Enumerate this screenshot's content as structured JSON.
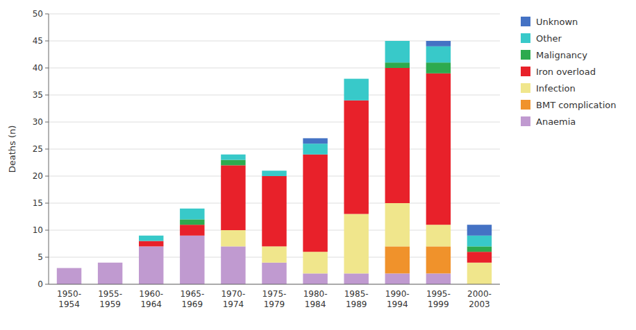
{
  "chart_data": {
    "type": "bar",
    "stacked": true,
    "ylabel": "Deaths (n)",
    "categories": [
      "1950-\n1954",
      "1955-\n1959",
      "1960-\n1964",
      "1965-\n1969",
      "1970-\n1974",
      "1975-\n1979",
      "1980-\n1984",
      "1985-\n1989",
      "1990-\n1994",
      "1995-\n1999",
      "2000-\n2003"
    ],
    "series": [
      {
        "name": "Anaemia",
        "color": "#c09ad0",
        "values": [
          3,
          4,
          7,
          9,
          7,
          4,
          2,
          2,
          2,
          2,
          0
        ]
      },
      {
        "name": "BMT complication",
        "color": "#f0922b",
        "values": [
          0,
          0,
          0,
          0,
          0,
          0,
          0,
          0,
          5,
          5,
          0
        ]
      },
      {
        "name": "Infection",
        "color": "#f0e68c",
        "values": [
          0,
          0,
          0,
          0,
          3,
          3,
          4,
          11,
          8,
          4,
          4
        ]
      },
      {
        "name": "Iron overload",
        "color": "#e8212a",
        "values": [
          0,
          0,
          1,
          2,
          12,
          13,
          18,
          21,
          25,
          28,
          2
        ]
      },
      {
        "name": "Malignancy",
        "color": "#2daa4e",
        "values": [
          0,
          0,
          0,
          1,
          1,
          0,
          0,
          0,
          1,
          2,
          1
        ]
      },
      {
        "name": "Other",
        "color": "#38c9c9",
        "values": [
          0,
          0,
          1,
          2,
          1,
          1,
          2,
          4,
          4,
          3,
          2
        ]
      },
      {
        "name": "Unknown",
        "color": "#4472c4",
        "values": [
          0,
          0,
          0,
          0,
          0,
          0,
          1,
          0,
          0,
          1,
          2
        ]
      }
    ],
    "ylim": [
      0,
      50
    ],
    "yticks": [
      0,
      5,
      10,
      15,
      20,
      25,
      30,
      35,
      40,
      45,
      50
    ],
    "grid": true,
    "legend": "right"
  }
}
